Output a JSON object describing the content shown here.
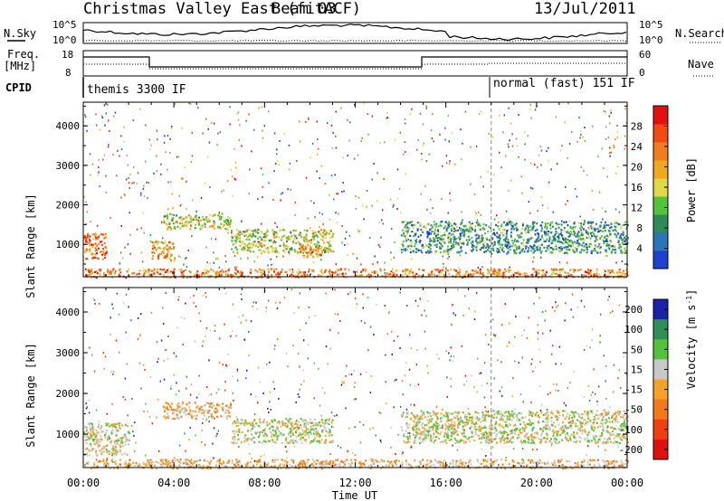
{
  "header": {
    "title": "Christmas Valley East (fitACF)",
    "beam": "Beam 03",
    "date": "13/Jul/2011"
  },
  "left_labels": {
    "nsky": "N.Sky",
    "freq": "Freq.",
    "freq_unit": "[MHz]",
    "cpid": "CPID"
  },
  "right_labels": {
    "nsearch": "N.Search",
    "nave": "Nave"
  },
  "tick_labels": {
    "noise_top_left": "10^5",
    "noise_bottom_left": "10^0",
    "noise_top_right": "10^5",
    "noise_bottom_right": "10^0",
    "freq_top": "18",
    "freq_bottom": "8",
    "nave_top": "60",
    "nave_bottom": "0"
  },
  "cpid_blocks": [
    {
      "label": "themis 3300 IF",
      "start": "00:00"
    },
    {
      "label": "normal (fast) 151 IF",
      "start": "18:00"
    }
  ],
  "colors": {
    "power": [
      "#1f3fd0",
      "#2a74b8",
      "#2e8b57",
      "#55c23b",
      "#dfd94a",
      "#f0a81f",
      "#f27d1e",
      "#f24a12",
      "#e31010"
    ],
    "velocity": [
      "#1a23a8",
      "#2f8f55",
      "#55c23b",
      "#c8c8c8",
      "#f5a22b",
      "#f27a1a",
      "#f04010",
      "#e01010"
    ]
  },
  "chart_data": [
    {
      "type": "heatmap",
      "panel": "power",
      "x_unit": "Time UT",
      "xlabel": "Time UT",
      "ylabel": "Slant Range [km]",
      "xticks": [
        "00:00",
        "04:00",
        "08:00",
        "12:00",
        "16:00",
        "20:00",
        "00:00"
      ],
      "yticks": [
        1000,
        2000,
        3000,
        4000
      ],
      "ylim": [
        180,
        4600
      ],
      "colorbar": {
        "label": "Power [dB]",
        "ticks": [
          4,
          8,
          12,
          16,
          20,
          24,
          28
        ],
        "range": [
          0,
          32
        ]
      },
      "echo_regions": [
        {
          "start": "00:00",
          "end": "01:00",
          "range_low": 600,
          "range_high": 1300,
          "level": 24
        },
        {
          "start": "03:00",
          "end": "04:00",
          "range_low": 600,
          "range_high": 1100,
          "level": 20
        },
        {
          "start": "03:30",
          "end": "06:30",
          "range_low": 1400,
          "range_high": 1800,
          "level": 16
        },
        {
          "start": "06:30",
          "end": "11:00",
          "range_low": 800,
          "range_high": 1400,
          "level": 14
        },
        {
          "start": "09:30",
          "end": "10:30",
          "range_low": 700,
          "range_high": 1000,
          "level": 22
        },
        {
          "start": "00:00",
          "end": "24:00",
          "range_low": 180,
          "range_high": 400,
          "level": 22
        },
        {
          "start": "14:00",
          "end": "24:00",
          "range_low": 800,
          "range_high": 1600,
          "level": 8
        }
      ]
    },
    {
      "type": "heatmap",
      "panel": "velocity",
      "xlabel": "Time UT",
      "ylabel": "Slant Range [km]",
      "xticks": [
        "00:00",
        "04:00",
        "08:00",
        "12:00",
        "16:00",
        "20:00",
        "00:00"
      ],
      "yticks": [
        1000,
        2000,
        3000,
        4000
      ],
      "ylim": [
        180,
        4600
      ],
      "colorbar": {
        "label": "Velocity [m s^-1]",
        "ticks": [
          "200",
          "100",
          "50",
          "15",
          "-15",
          "-50",
          "-100",
          "-200"
        ]
      },
      "echo_regions": [
        {
          "start": "00:00",
          "end": "02:00",
          "range_low": 500,
          "range_high": 1300,
          "level": 0
        },
        {
          "start": "03:30",
          "end": "06:30",
          "range_low": 1400,
          "range_high": 1800,
          "level": -40
        },
        {
          "start": "06:30",
          "end": "11:00",
          "range_low": 800,
          "range_high": 1400,
          "level": 20
        },
        {
          "start": "00:00",
          "end": "24:00",
          "range_low": 180,
          "range_high": 400,
          "level": -30
        },
        {
          "start": "14:00",
          "end": "24:00",
          "range_low": 800,
          "range_high": 1600,
          "level": 0
        }
      ]
    }
  ]
}
